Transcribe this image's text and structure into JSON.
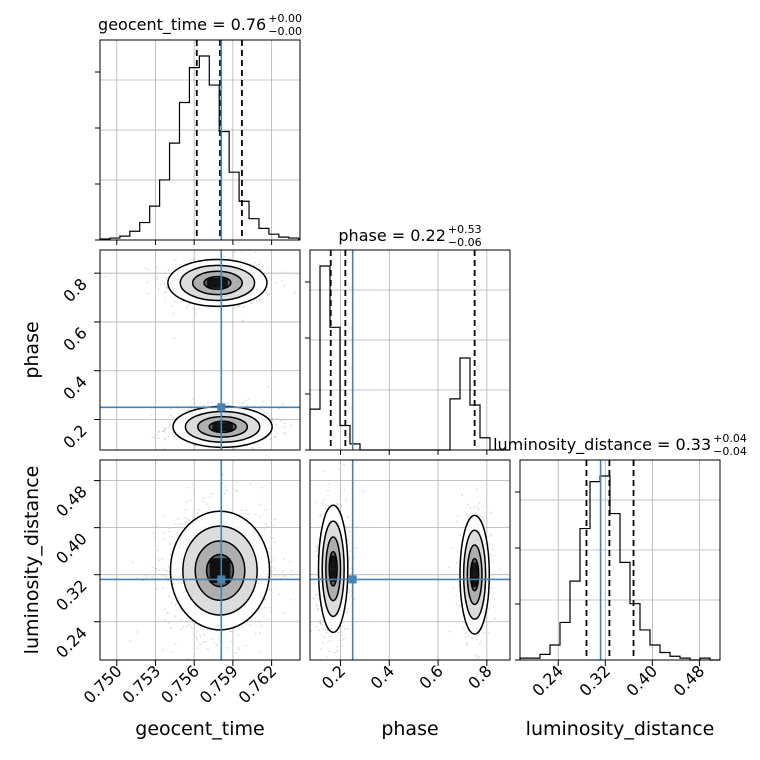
{
  "chart_data": {
    "type": "corner",
    "parameters": [
      "geocent_time",
      "phase",
      "luminosity_distance"
    ],
    "truths": {
      "geocent_time": 0.7581,
      "phase": 0.25,
      "luminosity_distance": 0.312
    },
    "ranges": {
      "geocent_time": [
        0.7487,
        0.7642
      ],
      "phase": [
        0.075,
        0.895
      ],
      "luminosity_distance": [
        0.175,
        0.515
      ]
    },
    "titles": [
      {
        "text": "geocent_time = 0.76",
        "upper": "+0.00",
        "lower": "−0.00"
      },
      {
        "text": "phase = 0.22",
        "upper": "+0.53",
        "lower": "−0.06"
      },
      {
        "text": "luminosity_distance = 0.33",
        "upper": "+0.04",
        "lower": "−0.04"
      }
    ],
    "quantiles": {
      "geocent_time": [
        0.7562,
        0.758,
        0.7597
      ],
      "phase": [
        0.16,
        0.22,
        0.75
      ],
      "luminosity_distance": [
        0.288,
        0.327,
        0.368
      ]
    },
    "ticks": {
      "geocent_time": [
        {
          "v": 0.75,
          "label": "0.750"
        },
        {
          "v": 0.753,
          "label": "0.753"
        },
        {
          "v": 0.756,
          "label": "0.756"
        },
        {
          "v": 0.759,
          "label": "0.759"
        },
        {
          "v": 0.762,
          "label": "0.762"
        }
      ],
      "phase": [
        {
          "v": 0.2,
          "label": "0.2"
        },
        {
          "v": 0.4,
          "label": "0.4"
        },
        {
          "v": 0.6,
          "label": "0.6"
        },
        {
          "v": 0.8,
          "label": "0.8"
        }
      ],
      "luminosity_distance": [
        {
          "v": 0.24,
          "label": "0.24"
        },
        {
          "v": 0.32,
          "label": "0.32"
        },
        {
          "v": 0.4,
          "label": "0.40"
        },
        {
          "v": 0.48,
          "label": "0.48"
        }
      ]
    },
    "hist_geocent_time": {
      "edges_start": 0.7487,
      "bin_width": 0.00077,
      "counts": [
        1,
        2,
        4,
        9,
        18,
        35,
        62,
        100,
        142,
        178,
        190,
        160,
        112,
        70,
        40,
        22,
        12,
        6,
        3,
        2
      ]
    },
    "hist_phase": {
      "edges_start": 0.075,
      "bin_width": 0.041,
      "counts": [
        20,
        90,
        60,
        12,
        3,
        0,
        0,
        0,
        0,
        0,
        0,
        0,
        0,
        0,
        25,
        45,
        22,
        6,
        0,
        0
      ]
    },
    "hist_luminosity_distance": {
      "edges_start": 0.175,
      "bin_width": 0.017,
      "counts": [
        1,
        1,
        3,
        8,
        20,
        42,
        70,
        95,
        98,
        78,
        52,
        30,
        16,
        8,
        4,
        2,
        1,
        0,
        1,
        0
      ]
    },
    "grid": true,
    "truth_color": "#4682b4",
    "line_color": "#000000"
  }
}
